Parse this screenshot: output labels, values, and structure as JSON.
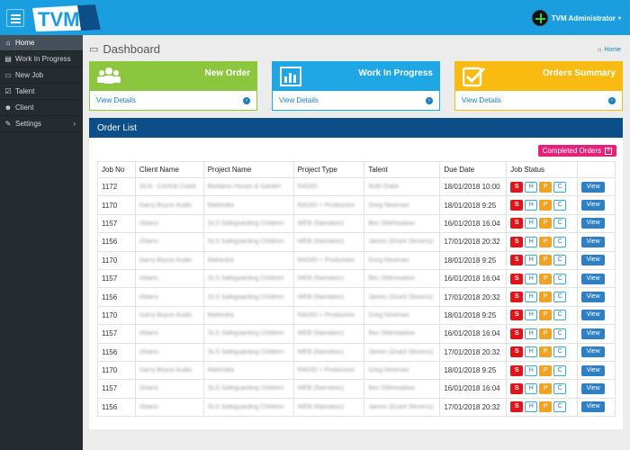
{
  "topbar": {
    "logo_text": "TVM",
    "admin_label": "TVM Administrator",
    "caret": "▾"
  },
  "sidebar": {
    "items": [
      {
        "label": "Home",
        "icon": "home-icon",
        "glyph": "⌂",
        "active": true
      },
      {
        "label": "Work In Progress",
        "icon": "chart-icon",
        "glyph": "▤"
      },
      {
        "label": "New Job",
        "icon": "file-icon",
        "glyph": "▭"
      },
      {
        "label": "Talent",
        "icon": "check-icon",
        "glyph": "☑"
      },
      {
        "label": "Client",
        "icon": "users-icon",
        "glyph": "☻"
      },
      {
        "label": "Settings",
        "icon": "wrench-icon",
        "glyph": "✎",
        "chevron": "›"
      }
    ]
  },
  "page": {
    "title": "Dashboard",
    "breadcrumb": "Home"
  },
  "cards": [
    {
      "title": "New Order",
      "link": "View Details",
      "color": "#8cc63f",
      "icon": "users-icon"
    },
    {
      "title": "Work In Progress",
      "link": "View Details",
      "color": "#1ea7e4",
      "icon": "bar-chart-icon"
    },
    {
      "title": "Orders Summary",
      "link": "View Details",
      "color": "#f9bb11",
      "icon": "checkbox-icon"
    }
  ],
  "order_list": {
    "title": "Order List",
    "completed_label": "Completed Orders",
    "columns": [
      "Job No",
      "Client Name",
      "Project Name",
      "Project Type",
      "Talent",
      "Due Date",
      "Job Status",
      ""
    ],
    "status_buttons": [
      "S",
      "H",
      "P",
      "C"
    ],
    "view_label": "View",
    "rows": [
      {
        "job": "1172",
        "client": "SCA - Central Coast",
        "project": "Borbanic House & Garden",
        "type": "RADIO",
        "talent": "Ruth Gabe",
        "due": "18/01/2018 10:00"
      },
      {
        "job": "1170",
        "client": "Garry Boyce Audio",
        "project": "Mahindra",
        "type": "RADIO + Production",
        "talent": "Greg Newman",
        "due": "18/01/2018 9:25"
      },
      {
        "job": "1157",
        "client": "iStains",
        "project": "SLS Safeguarding Children",
        "type": "WEB (Narration)",
        "talent": "Bec Oldmeadow",
        "due": "16/01/2018 16:04"
      },
      {
        "job": "1156",
        "client": "iStains",
        "project": "SLS Safeguarding Children",
        "type": "WEB (Narration)",
        "talent": "James (Grant Stevens)",
        "due": "17/01/2018 20:32"
      },
      {
        "job": "1170",
        "client": "Garry Boyce Audio",
        "project": "Mahindra",
        "type": "RADIO + Production",
        "talent": "Greg Newman",
        "due": "18/01/2018 9:25"
      },
      {
        "job": "1157",
        "client": "iStains",
        "project": "SLS Safeguarding Children",
        "type": "WEB (Narration)",
        "talent": "Bec Oldmeadow",
        "due": "16/01/2018 16:04"
      },
      {
        "job": "1156",
        "client": "iStains",
        "project": "SLS Safeguarding Children",
        "type": "WEB (Narration)",
        "talent": "James (Grant Stevens)",
        "due": "17/01/2018 20:32"
      },
      {
        "job": "1170",
        "client": "Garry Boyce Audio",
        "project": "Mahindra",
        "type": "RADIO + Production",
        "talent": "Greg Newman",
        "due": "18/01/2018 9:25"
      },
      {
        "job": "1157",
        "client": "iStains",
        "project": "SLS Safeguarding Children",
        "type": "WEB (Narration)",
        "talent": "Bec Oldmeadow",
        "due": "16/01/2018 16:04"
      },
      {
        "job": "1156",
        "client": "iStains",
        "project": "SLS Safeguarding Children",
        "type": "WEB (Narration)",
        "talent": "James (Grant Stevens)",
        "due": "17/01/2018 20:32"
      },
      {
        "job": "1170",
        "client": "Garry Boyce Audio",
        "project": "Mahindra",
        "type": "RADIO + Production",
        "talent": "Greg Newman",
        "due": "18/01/2018 9:25"
      },
      {
        "job": "1157",
        "client": "iStains",
        "project": "SLS Safeguarding Children",
        "type": "WEB (Narration)",
        "talent": "Bec Oldmeadow",
        "due": "16/01/2018 16:04"
      },
      {
        "job": "1156",
        "client": "iStains",
        "project": "SLS Safeguarding Children",
        "type": "WEB (Narration)",
        "talent": "James (Grant Stevens)",
        "due": "17/01/2018 20:32"
      }
    ]
  }
}
